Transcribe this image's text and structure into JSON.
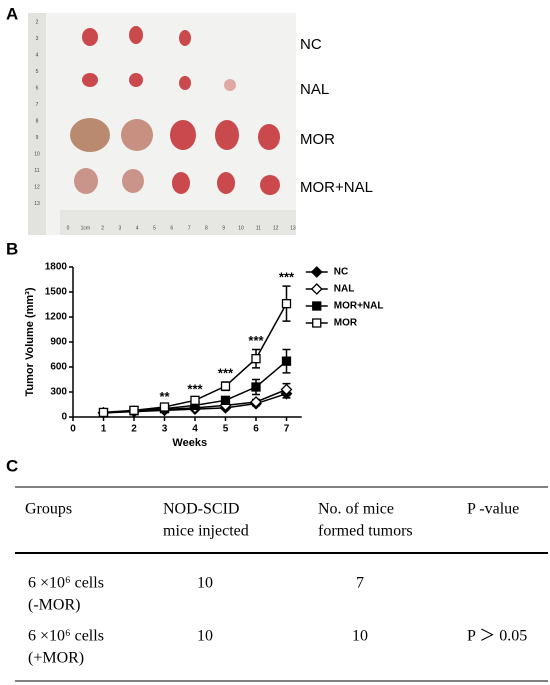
{
  "panel_a": {
    "letter": "A",
    "labels": [
      "NC",
      "NAL",
      "MOR",
      "MOR+NAL"
    ],
    "ruler_left": [
      "2",
      "3",
      "4",
      "5",
      "6",
      "7",
      "8",
      "9",
      "10",
      "11",
      "12",
      "13"
    ],
    "ruler_bottom": [
      "0",
      "1cm",
      "2",
      "3",
      "4",
      "5",
      "6",
      "7",
      "8",
      "9",
      "10",
      "11",
      "12",
      "13"
    ]
  },
  "panel_b": {
    "letter": "B"
  },
  "chart_data": {
    "type": "line",
    "x_label": "Weeks",
    "y_label": "Tumor Volume (mm³)",
    "x": [
      1,
      2,
      3,
      4,
      5,
      6,
      7
    ],
    "xlim": [
      0,
      7.5
    ],
    "xticks": [
      0,
      1,
      2,
      3,
      4,
      5,
      6,
      7
    ],
    "ylim": [
      0,
      1800
    ],
    "yticks": [
      0,
      300,
      600,
      900,
      1200,
      1500,
      1800
    ],
    "legend": "right",
    "series": [
      {
        "name": "NC",
        "color": "#000000",
        "marker": "filled-diamond",
        "values": [
          50,
          65,
          80,
          95,
          110,
          160,
          280
        ],
        "errors": [
          10,
          10,
          15,
          15,
          20,
          25,
          50
        ]
      },
      {
        "name": "NAL",
        "color": "#000000",
        "marker": "open-diamond",
        "values": [
          50,
          70,
          90,
          110,
          140,
          180,
          330
        ],
        "errors": [
          10,
          10,
          15,
          20,
          25,
          30,
          70
        ]
      },
      {
        "name": "MOR+NAL",
        "color": "#000000",
        "marker": "filled-square",
        "values": [
          50,
          75,
          100,
          140,
          200,
          360,
          670
        ],
        "errors": [
          10,
          15,
          20,
          25,
          40,
          90,
          140
        ]
      },
      {
        "name": "MOR",
        "color": "#000000",
        "marker": "open-square",
        "values": [
          55,
          80,
          120,
          200,
          370,
          700,
          1360
        ],
        "errors": [
          10,
          15,
          20,
          30,
          50,
          110,
          210
        ]
      }
    ],
    "annotations": [
      {
        "text": "**",
        "x": 3
      },
      {
        "text": "***",
        "x": 4
      },
      {
        "text": "***",
        "x": 5
      },
      {
        "text": "***",
        "x": 6
      },
      {
        "text": "***",
        "x": 7
      }
    ]
  },
  "panel_c": {
    "letter": "C",
    "table": {
      "header": [
        [
          "Groups"
        ],
        [
          "NOD-SCID",
          "mice injected"
        ],
        [
          "No. of mice",
          "formed tumors"
        ],
        [
          "P -value"
        ]
      ],
      "rows": [
        [
          [
            "6 ×10⁶ cells",
            "(-MOR)"
          ],
          [
            "10"
          ],
          [
            "7"
          ]
        ],
        [
          [
            "6 ×10⁶ cells",
            "(+MOR)"
          ],
          [
            "10"
          ],
          [
            "10"
          ],
          [
            "P ＞ 0.05"
          ]
        ]
      ]
    }
  }
}
